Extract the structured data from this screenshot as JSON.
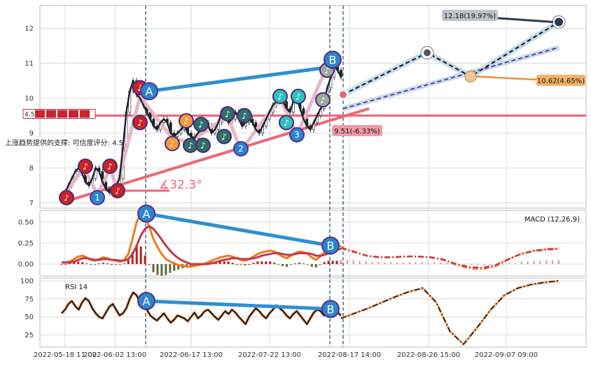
{
  "chart_data": {
    "type": "line",
    "x_ticks": [
      "2022-05-18 11:00",
      "2022-06-02 13:00",
      "2022-06-17 13:00",
      "2022-07-22 13:00",
      "2022-08-17 14:00",
      "2022-08-26 15:00",
      "2022-09-07 09:00"
    ],
    "panels": {
      "price": {
        "ylim": [
          6.85,
          12.65
        ],
        "yticks": [
          7,
          8,
          9,
          10,
          11,
          12
        ],
        "series": [
          {
            "values": [
              7.2,
              7.3,
              7.5,
              7.7,
              7.9,
              8.0,
              7.85,
              7.6,
              7.5,
              7.7,
              8.0,
              7.9,
              7.6,
              7.4,
              7.3,
              7.4,
              7.5,
              7.7,
              8.6,
              9.6,
              10.2,
              10.5,
              10.1,
              10.0,
              9.8,
              9.6,
              9.4,
              9.2,
              9.1,
              9.3,
              9.4,
              9.3,
              9.0,
              8.9,
              9.0,
              9.1,
              9.2,
              9.0,
              8.9,
              8.85,
              9.0,
              9.1,
              9.3,
              9.2,
              9.0,
              9.1,
              9.3,
              9.6,
              9.5,
              9.3,
              9.4,
              9.6,
              9.4,
              9.2,
              9.3,
              9.4,
              9.3,
              9.1,
              9.0,
              9.2,
              9.4,
              9.6,
              9.8,
              9.9,
              10.0,
              9.9,
              9.7,
              9.6,
              9.9,
              10.0,
              9.7,
              9.4,
              9.2,
              9.1,
              9.3,
              9.5,
              9.7,
              9.9,
              10.3,
              10.6,
              10.9,
              10.8,
              10.6
            ]
          }
        ],
        "support_level": 9.5,
        "support_label": "上涨趋势提供的支撑: 可信度评分: 4.5",
        "support_score": "4.5",
        "angle_label": "∡32.3°",
        "wave_labels": [
          "A",
          "B",
          "1",
          "2",
          "3"
        ],
        "projection_labels": [
          {
            "text": "12.18(19.97%)",
            "value": 12.18,
            "color": "#bcc3cc"
          },
          {
            "text": "10.62(4.65%)",
            "value": 10.62,
            "color": "#f5b06a"
          },
          {
            "text": "9.51(-6.33%)",
            "value": 9.51,
            "color": "#f19aa6"
          }
        ]
      },
      "macd": {
        "title": "MACD (12,26,9)",
        "ylim": [
          -0.14,
          0.64
        ],
        "yticks": [
          0.0,
          0.25,
          0.5
        ],
        "ytick_labels": [
          "0.00",
          "0.25",
          "0.50"
        ],
        "series": [
          {
            "values": [
              0.02,
              0.02,
              0.03,
              0.06,
              0.09,
              0.1,
              0.08,
              0.05,
              0.04,
              0.06,
              0.08,
              0.07,
              0.05,
              0.04,
              0.03,
              0.05,
              0.12,
              0.3,
              0.5,
              0.6,
              0.55,
              0.45,
              0.3,
              0.2,
              0.12,
              0.06,
              0.03,
              0.01,
              -0.01,
              -0.02,
              -0.03,
              -0.03,
              -0.02,
              -0.01,
              0.0,
              0.02,
              0.04,
              0.06,
              0.08,
              0.09,
              0.1,
              0.09,
              0.07,
              0.05,
              0.04,
              0.06,
              0.09,
              0.12,
              0.14,
              0.15,
              0.16,
              0.15,
              0.12,
              0.09,
              0.07,
              0.1,
              0.13,
              0.15,
              0.14,
              0.12,
              0.08,
              0.05,
              0.09,
              0.14,
              0.18,
              0.2,
              0.22,
              0.21
            ]
          },
          {
            "values": [
              0.02,
              0.02,
              0.02,
              0.03,
              0.05,
              0.07,
              0.07,
              0.06,
              0.05,
              0.05,
              0.06,
              0.06,
              0.05,
              0.05,
              0.04,
              0.04,
              0.06,
              0.12,
              0.22,
              0.34,
              0.42,
              0.45,
              0.42,
              0.36,
              0.29,
              0.22,
              0.16,
              0.11,
              0.07,
              0.04,
              0.02,
              0.0,
              0.0,
              0.0,
              0.0,
              0.0,
              0.01,
              0.02,
              0.04,
              0.05,
              0.06,
              0.07,
              0.07,
              0.06,
              0.06,
              0.06,
              0.07,
              0.08,
              0.1,
              0.11,
              0.12,
              0.13,
              0.13,
              0.12,
              0.11,
              0.11,
              0.12,
              0.13,
              0.13,
              0.13,
              0.12,
              0.1,
              0.1,
              0.11,
              0.13,
              0.15,
              0.17,
              0.18
            ]
          }
        ],
        "forecast": [
          0.2,
          0.15,
          0.1,
          0.08,
          0.08,
          0.09,
          0.09,
          0.08,
          0.05,
          -0.01,
          -0.05,
          -0.06,
          -0.03,
          0.05,
          0.12,
          0.16,
          0.18,
          0.19
        ]
      },
      "rsi": {
        "title": "RSI 14",
        "ylim": [
          8,
          104
        ],
        "yticks": [
          25,
          50,
          75,
          100
        ],
        "series": [
          {
            "values": [
              55,
              60,
              68,
              72,
              65,
              60,
              70,
              76,
              72,
              62,
              55,
              50,
              48,
              56,
              64,
              68,
              60,
              52,
              55,
              62,
              75,
              84,
              80,
              70,
              64,
              60,
              52,
              48,
              45,
              50,
              55,
              48,
              42,
              46,
              52,
              50,
              48,
              44,
              50,
              56,
              48,
              52,
              58,
              60,
              55,
              50,
              46,
              52,
              58,
              54,
              60,
              56,
              50,
              45,
              40,
              50,
              56,
              62,
              58,
              52,
              48,
              55,
              60,
              66,
              62,
              58,
              52,
              48,
              54,
              58,
              52,
              46,
              40,
              48,
              56,
              60,
              58,
              52,
              58,
              64,
              60,
              56,
              52
            ]
          }
        ],
        "forecast": [
          48,
          55,
          62,
          70,
          78,
          85,
          90,
          70,
          30,
          12,
          35,
          60,
          80,
          90,
          95,
          98,
          100
        ]
      }
    }
  }
}
